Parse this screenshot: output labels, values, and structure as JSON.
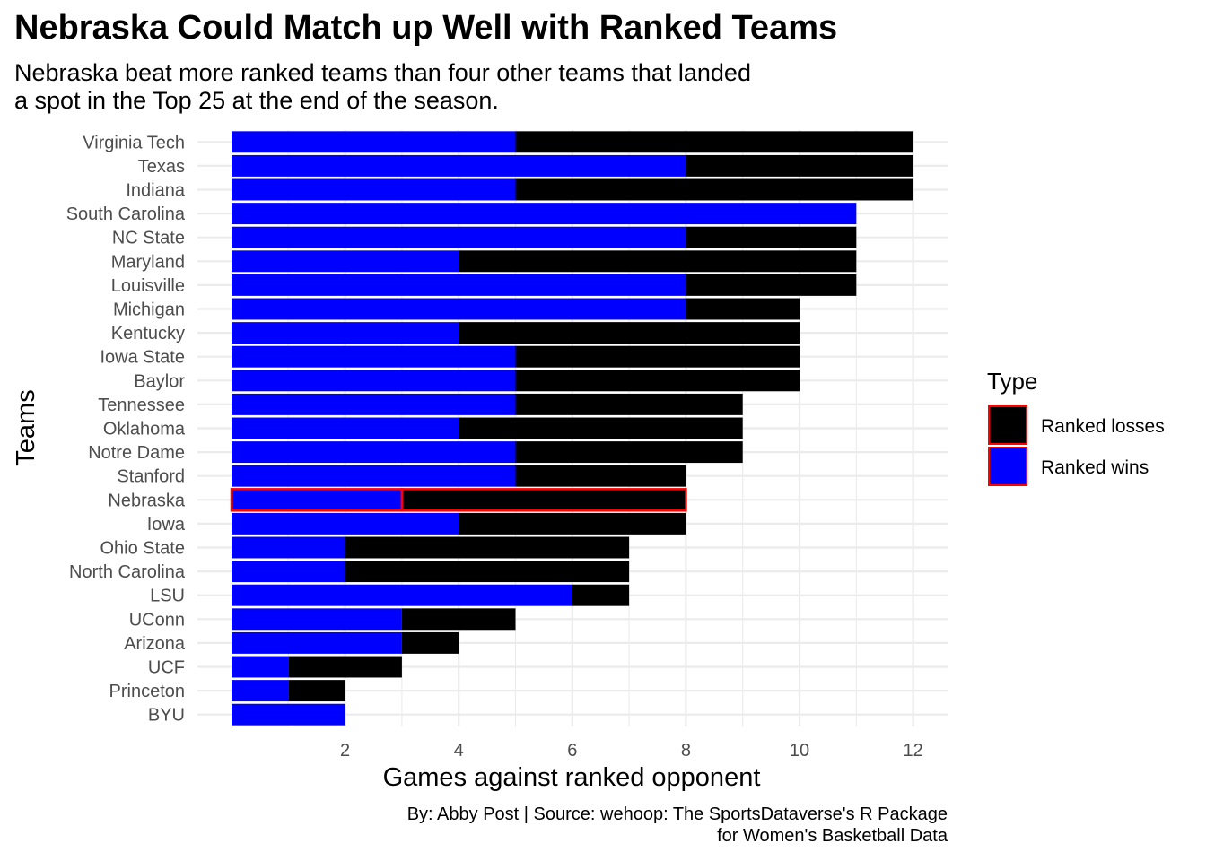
{
  "chart_data": {
    "type": "bar",
    "orientation": "horizontal",
    "stacked": true,
    "title": "Nebraska Could Match up Well with Ranked Teams",
    "subtitle_lines": [
      "Nebraska beat more ranked teams than four other teams that landed",
      "a spot in the Top 25 at the end of the season."
    ],
    "xlabel": "Games against ranked opponent",
    "ylabel": "Teams",
    "caption_lines": [
      "By: Abby Post  | Source: wehoop: The SportsDataverse's R Package",
      "for Women's Basketball Data"
    ],
    "xlim": [
      0,
      12.6
    ],
    "x_ticks": [
      2,
      4,
      6,
      8,
      10,
      12
    ],
    "grid": true,
    "highlight_category": "Nebraska",
    "highlight_color": "#ff0000",
    "categories": [
      "Virginia Tech",
      "Texas",
      "Indiana",
      "South Carolina",
      "NC State",
      "Maryland",
      "Louisville",
      "Michigan",
      "Kentucky",
      "Iowa State",
      "Baylor",
      "Tennessee",
      "Oklahoma",
      "Notre Dame",
      "Stanford",
      "Nebraska",
      "Iowa",
      "Ohio State",
      "North Carolina",
      "LSU",
      "UConn",
      "Arizona",
      "UCF",
      "Princeton",
      "BYU"
    ],
    "series": [
      {
        "name": "Ranked wins",
        "color": "#0000ff",
        "values": [
          5,
          8,
          5,
          11,
          8,
          4,
          8,
          8,
          4,
          5,
          5,
          5,
          4,
          5,
          5,
          3,
          4,
          2,
          2,
          6,
          3,
          3,
          1,
          1,
          2
        ]
      },
      {
        "name": "Ranked losses",
        "color": "#000000",
        "values": [
          7,
          4,
          7,
          0,
          3,
          7,
          3,
          2,
          6,
          5,
          5,
          4,
          5,
          4,
          3,
          5,
          4,
          5,
          5,
          1,
          2,
          1,
          2,
          1,
          0
        ]
      }
    ],
    "legend": {
      "title": "Type",
      "position": "right",
      "entries": [
        {
          "label": "Ranked losses",
          "color": "#000000"
        },
        {
          "label": "Ranked wins",
          "color": "#0000ff"
        }
      ]
    }
  }
}
